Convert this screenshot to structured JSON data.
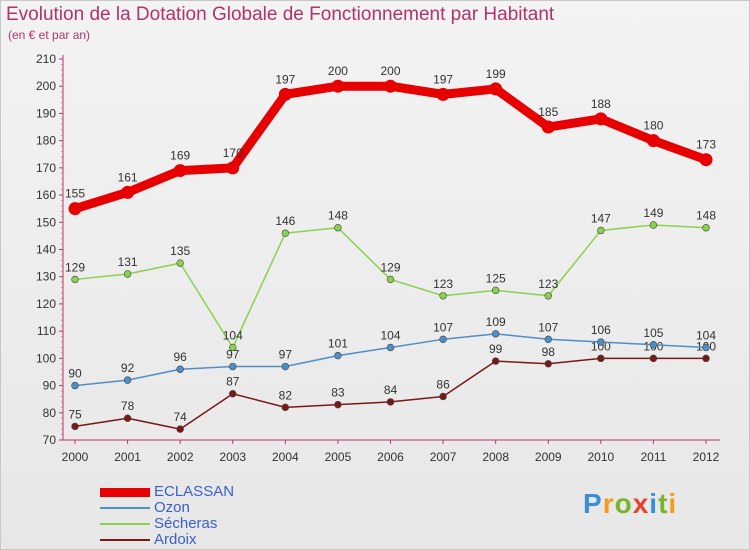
{
  "header": {
    "title": "Evolution de la Dotation Globale de Fonctionnement par Habitant",
    "subtitle": "(en € et par an)"
  },
  "logo": {
    "text": "Proxiti",
    "colors": [
      "#3a8fd8",
      "#f29b1d",
      "#79b42b",
      "#e8432b",
      "#3a8fd8",
      "#79b42b",
      "#f29b1d"
    ]
  },
  "chart_data": {
    "type": "line",
    "title": "Evolution de la Dotation Globale de Fonctionnement par Habitant",
    "subtitle": "(en € et par an)",
    "x": [
      "2000",
      "2001",
      "2002",
      "2003",
      "2004",
      "2005",
      "2006",
      "2007",
      "2008",
      "2009",
      "2010",
      "2011",
      "2012"
    ],
    "ylim": [
      70,
      210
    ],
    "yticks": [
      70,
      80,
      90,
      100,
      110,
      120,
      130,
      140,
      150,
      160,
      170,
      180,
      190,
      200,
      210
    ],
    "grid": false,
    "legend_position": "bottom-left",
    "series": [
      {
        "name": "ECLASSAN",
        "color": "#e60000",
        "values": [
          155,
          161,
          169,
          170,
          197,
          200,
          200,
          197,
          199,
          185,
          188,
          180,
          173
        ]
      },
      {
        "name": "Ozon",
        "color": "#4f8fc8",
        "values": [
          90,
          92,
          96,
          97,
          97,
          101,
          104,
          107,
          109,
          107,
          106,
          105,
          104
        ]
      },
      {
        "name": "Sécheras",
        "color": "#8ad24e",
        "values": [
          129,
          131,
          135,
          104,
          146,
          148,
          129,
          123,
          125,
          123,
          147,
          149,
          148
        ]
      },
      {
        "name": "Ardoix",
        "color": "#7a1818",
        "values": [
          75,
          78,
          74,
          87,
          82,
          83,
          84,
          86,
          99,
          98,
          100,
          100,
          100
        ]
      }
    ]
  }
}
